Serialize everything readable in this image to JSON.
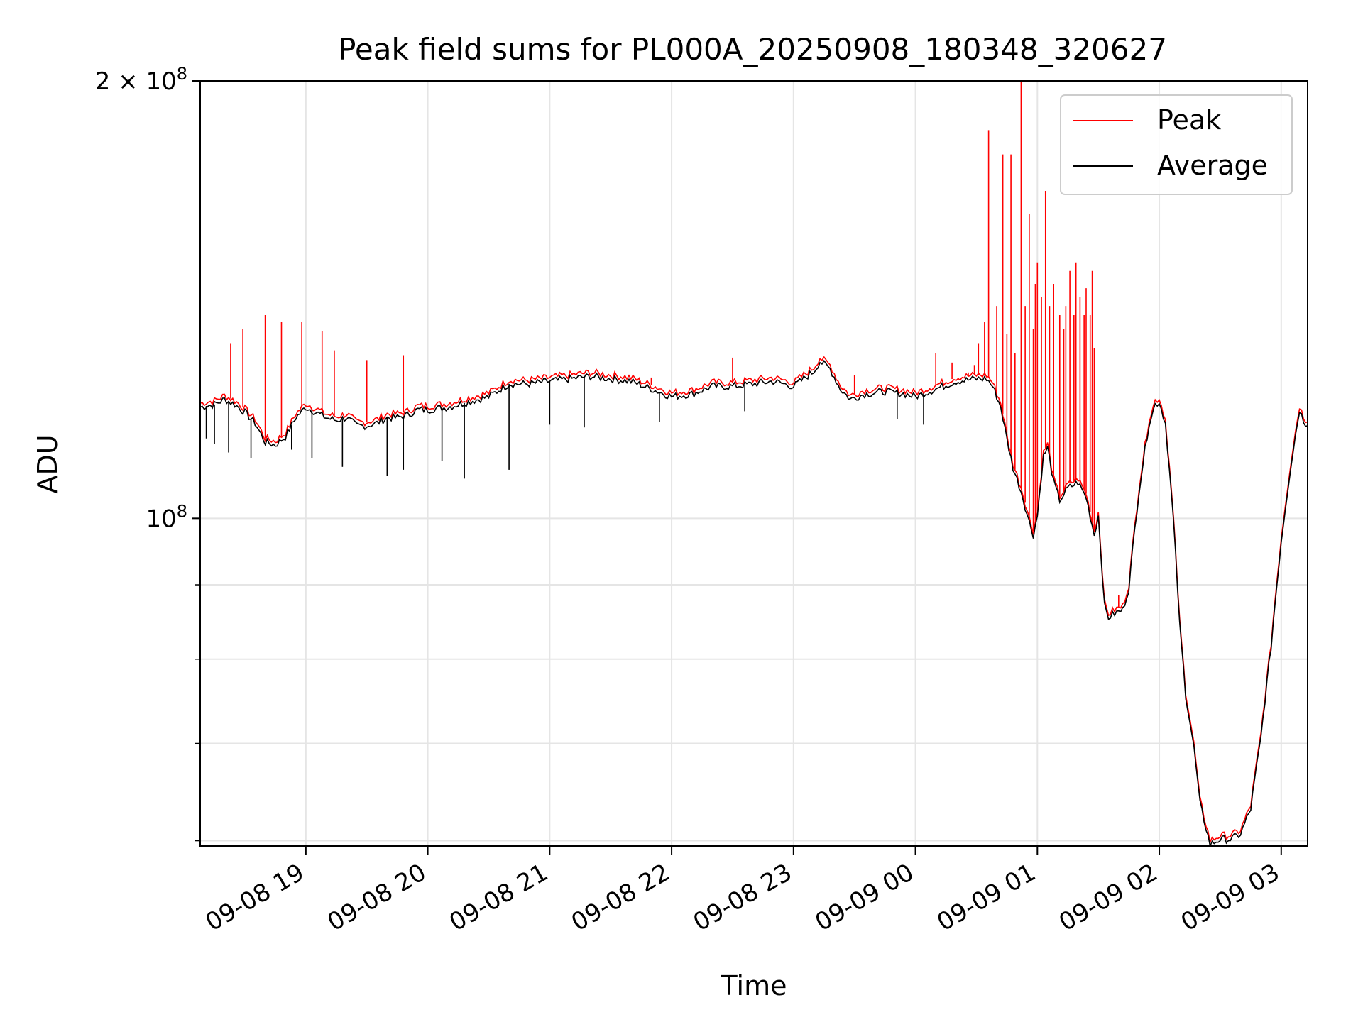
{
  "chart_data": {
    "type": "line",
    "title": "Peak field sums for PL000A_20250908_180348_320627",
    "xlabel": "Time",
    "ylabel": "ADU",
    "x_range": [
      "2025-09-08 18:08",
      "2025-09-09 03:13"
    ],
    "x_ticks": [
      "09-08 19",
      "09-08 20",
      "09-08 21",
      "09-08 22",
      "09-08 23",
      "09-09 00",
      "09-09 01",
      "09-09 02",
      "09-09 03"
    ],
    "y_scale": "log",
    "ylim": [
      59500000,
      200000000
    ],
    "y_tick_labels": [
      {
        "value": 100000000,
        "base": "10",
        "exp": "8",
        "prefix": ""
      },
      {
        "value": 200000000,
        "base": "10",
        "exp": "8",
        "prefix": "2 × "
      }
    ],
    "y_minor_ticks": [
      60000000,
      70000000,
      80000000,
      90000000
    ],
    "grid": true,
    "legend_position": "top-right",
    "colors": {
      "peak": "#ff0000",
      "average": "#000000",
      "grid": "#e5e5e5",
      "axis": "#000000"
    },
    "series": [
      {
        "name": "Peak",
        "color": "#ff0000",
        "points": [
          [
            "2025-09-08 18:08",
            120000000
          ],
          [
            "2025-09-08 18:15",
            120500000
          ],
          [
            "2025-09-08 18:20",
            121500000
          ],
          [
            "2025-09-08 18:25",
            120500000
          ],
          [
            "2025-09-08 18:30",
            119000000
          ],
          [
            "2025-09-08 18:35",
            117000000
          ],
          [
            "2025-09-08 18:40",
            113500000
          ],
          [
            "2025-09-08 18:45",
            113000000
          ],
          [
            "2025-09-08 18:50",
            114500000
          ],
          [
            "2025-09-08 18:55",
            118000000
          ],
          [
            "2025-09-08 19:00",
            120000000
          ],
          [
            "2025-09-08 19:05",
            119000000
          ],
          [
            "2025-09-08 19:10",
            118000000
          ],
          [
            "2025-09-08 19:15",
            117500000
          ],
          [
            "2025-09-08 19:20",
            118000000
          ],
          [
            "2025-09-08 19:25",
            116500000
          ],
          [
            "2025-09-08 19:30",
            116500000
          ],
          [
            "2025-09-08 19:35",
            117000000
          ],
          [
            "2025-09-08 19:40",
            118000000
          ],
          [
            "2025-09-08 19:45",
            118000000
          ],
          [
            "2025-09-08 19:50",
            118500000
          ],
          [
            "2025-09-08 19:55",
            119500000
          ],
          [
            "2025-09-08 20:00",
            119500000
          ],
          [
            "2025-09-08 20:10",
            120000000
          ],
          [
            "2025-09-08 20:20",
            121000000
          ],
          [
            "2025-09-08 20:30",
            122000000
          ],
          [
            "2025-09-08 20:40",
            124500000
          ],
          [
            "2025-09-08 20:50",
            124500000
          ],
          [
            "2025-09-08 21:00",
            125000000
          ],
          [
            "2025-09-08 21:10",
            125500000
          ],
          [
            "2025-09-08 21:20",
            126000000
          ],
          [
            "2025-09-08 21:30",
            125500000
          ],
          [
            "2025-09-08 21:40",
            125000000
          ],
          [
            "2025-09-08 21:50",
            123500000
          ],
          [
            "2025-09-08 22:00",
            122000000
          ],
          [
            "2025-09-08 22:10",
            122500000
          ],
          [
            "2025-09-08 22:20",
            124000000
          ],
          [
            "2025-09-08 22:30",
            124000000
          ],
          [
            "2025-09-08 22:40",
            124500000
          ],
          [
            "2025-09-08 22:50",
            125000000
          ],
          [
            "2025-09-08 23:00",
            124000000
          ],
          [
            "2025-09-08 23:05",
            125500000
          ],
          [
            "2025-09-08 23:10",
            127000000
          ],
          [
            "2025-09-08 23:13",
            129000000
          ],
          [
            "2025-09-08 23:18",
            127500000
          ],
          [
            "2025-09-08 23:23",
            123500000
          ],
          [
            "2025-09-08 23:28",
            121500000
          ],
          [
            "2025-09-08 23:35",
            122500000
          ],
          [
            "2025-09-08 23:45",
            123000000
          ],
          [
            "2025-09-08 23:55",
            122500000
          ],
          [
            "2025-09-09 00:00",
            122000000
          ],
          [
            "2025-09-09 00:10",
            123500000
          ],
          [
            "2025-09-09 00:20",
            125000000
          ],
          [
            "2025-09-09 00:30",
            125500000
          ],
          [
            "2025-09-09 00:35",
            125500000
          ],
          [
            "2025-09-09 00:38",
            124000000
          ],
          [
            "2025-09-09 00:42",
            120000000
          ],
          [
            "2025-09-09 00:45",
            114000000
          ],
          [
            "2025-09-09 00:48",
            109000000
          ],
          [
            "2025-09-09 00:52",
            105000000
          ],
          [
            "2025-09-09 00:56",
            100000000
          ],
          [
            "2025-09-09 00:58",
            98000000
          ],
          [
            "2025-09-09 01:00",
            101000000
          ],
          [
            "2025-09-09 01:03",
            111000000
          ],
          [
            "2025-09-09 01:05",
            112500000
          ],
          [
            "2025-09-09 01:08",
            106500000
          ],
          [
            "2025-09-09 01:11",
            103500000
          ],
          [
            "2025-09-09 01:15",
            105500000
          ],
          [
            "2025-09-09 01:20",
            106500000
          ],
          [
            "2025-09-09 01:24",
            104000000
          ],
          [
            "2025-09-09 01:28",
            98000000
          ],
          [
            "2025-09-09 01:30",
            101000000
          ],
          [
            "2025-09-09 01:33",
            87500000
          ],
          [
            "2025-09-09 01:35",
            86000000
          ],
          [
            "2025-09-09 01:38",
            86500000
          ],
          [
            "2025-09-09 01:42",
            87000000
          ],
          [
            "2025-09-09 01:45",
            90000000
          ],
          [
            "2025-09-09 01:50",
            105000000
          ],
          [
            "2025-09-09 01:55",
            117000000
          ],
          [
            "2025-09-09 01:58",
            120500000
          ],
          [
            "2025-09-09 02:00",
            121000000
          ],
          [
            "2025-09-09 02:03",
            117000000
          ],
          [
            "2025-09-09 02:07",
            100000000
          ],
          [
            "2025-09-09 02:10",
            85000000
          ],
          [
            "2025-09-09 02:13",
            76000000
          ],
          [
            "2025-09-09 02:17",
            70000000
          ],
          [
            "2025-09-09 02:20",
            64000000
          ],
          [
            "2025-09-09 02:25",
            60000000
          ],
          [
            "2025-09-09 02:30",
            60500000
          ],
          [
            "2025-09-09 02:35",
            60500000
          ],
          [
            "2025-09-09 02:40",
            61000000
          ],
          [
            "2025-09-09 02:45",
            63500000
          ],
          [
            "2025-09-09 02:50",
            71000000
          ],
          [
            "2025-09-09 02:55",
            82000000
          ],
          [
            "2025-09-09 03:00",
            97000000
          ],
          [
            "2025-09-09 03:05",
            110000000
          ],
          [
            "2025-09-09 03:09",
            119500000
          ],
          [
            "2025-09-09 03:11",
            117500000
          ],
          [
            "2025-09-09 03:13",
            116500000
          ]
        ],
        "spikes": [
          [
            "2025-09-08 18:23",
            132000000
          ],
          [
            "2025-09-08 18:29",
            135000000
          ],
          [
            "2025-09-08 18:40",
            138000000
          ],
          [
            "2025-09-08 18:48",
            136500000
          ],
          [
            "2025-09-08 18:58",
            136500000
          ],
          [
            "2025-09-08 19:08",
            134500000
          ],
          [
            "2025-09-08 19:14",
            130500000
          ],
          [
            "2025-09-08 19:30",
            128500000
          ],
          [
            "2025-09-08 19:48",
            129500000
          ],
          [
            "2025-09-08 21:50",
            125000000
          ],
          [
            "2025-09-08 22:30",
            129000000
          ],
          [
            "2025-09-08 23:30",
            125500000
          ],
          [
            "2025-09-09 00:10",
            130000000
          ],
          [
            "2025-09-09 00:18",
            128000000
          ],
          [
            "2025-09-09 00:26",
            126000000
          ],
          [
            "2025-09-09 00:29",
            127500000
          ],
          [
            "2025-09-09 00:31",
            132000000
          ],
          [
            "2025-09-09 00:34",
            136500000
          ],
          [
            "2025-09-09 00:36",
            185000000
          ],
          [
            "2025-09-09 00:40",
            140000000
          ],
          [
            "2025-09-09 00:43",
            178000000
          ],
          [
            "2025-09-09 00:45",
            134000000
          ],
          [
            "2025-09-09 00:47",
            178000000
          ],
          [
            "2025-09-09 00:49",
            130000000
          ],
          [
            "2025-09-09 00:52",
            200000000
          ],
          [
            "2025-09-09 00:54",
            140000000
          ],
          [
            "2025-09-09 00:56",
            162000000
          ],
          [
            "2025-09-09 00:58",
            135000000
          ],
          [
            "2025-09-09 00:59",
            145000000
          ],
          [
            "2025-09-09 01:00",
            150000000
          ],
          [
            "2025-09-09 01:02",
            142000000
          ],
          [
            "2025-09-09 01:04",
            168000000
          ],
          [
            "2025-09-09 01:06",
            140000000
          ],
          [
            "2025-09-09 01:08",
            145000000
          ],
          [
            "2025-09-09 01:11",
            138000000
          ],
          [
            "2025-09-09 01:13",
            135000000
          ],
          [
            "2025-09-09 01:14",
            140000000
          ],
          [
            "2025-09-09 01:16",
            148000000
          ],
          [
            "2025-09-09 01:18",
            138000000
          ],
          [
            "2025-09-09 01:19",
            150000000
          ],
          [
            "2025-09-09 01:21",
            142000000
          ],
          [
            "2025-09-09 01:23",
            138000000
          ],
          [
            "2025-09-09 01:24",
            144000000
          ],
          [
            "2025-09-09 01:26",
            138000000
          ],
          [
            "2025-09-09 01:27",
            148000000
          ],
          [
            "2025-09-09 01:28",
            131000000
          ],
          [
            "2025-09-09 01:40",
            88500000
          ]
        ]
      },
      {
        "name": "Average",
        "color": "#000000",
        "points": "follows the Peak trace",
        "dips": [
          [
            "2025-09-08 18:11",
            113500000
          ],
          [
            "2025-09-08 18:15",
            112500000
          ],
          [
            "2025-09-08 18:22",
            111000000
          ],
          [
            "2025-09-08 18:33",
            110000000
          ],
          [
            "2025-09-08 18:48",
            113000000
          ],
          [
            "2025-09-08 18:53",
            111500000
          ],
          [
            "2025-09-08 19:03",
            110000000
          ],
          [
            "2025-09-08 19:18",
            108500000
          ],
          [
            "2025-09-08 19:40",
            107000000
          ],
          [
            "2025-09-08 19:48",
            108000000
          ],
          [
            "2025-09-08 20:07",
            109500000
          ],
          [
            "2025-09-08 20:18",
            106500000
          ],
          [
            "2025-09-08 20:40",
            108000000
          ],
          [
            "2025-09-08 21:00",
            116000000
          ],
          [
            "2025-09-08 21:17",
            115500000
          ],
          [
            "2025-09-08 21:54",
            116500000
          ],
          [
            "2025-09-08 22:36",
            118500000
          ],
          [
            "2025-09-08 23:51",
            117000000
          ],
          [
            "2025-09-09 00:04",
            116000000
          ]
        ]
      }
    ]
  }
}
